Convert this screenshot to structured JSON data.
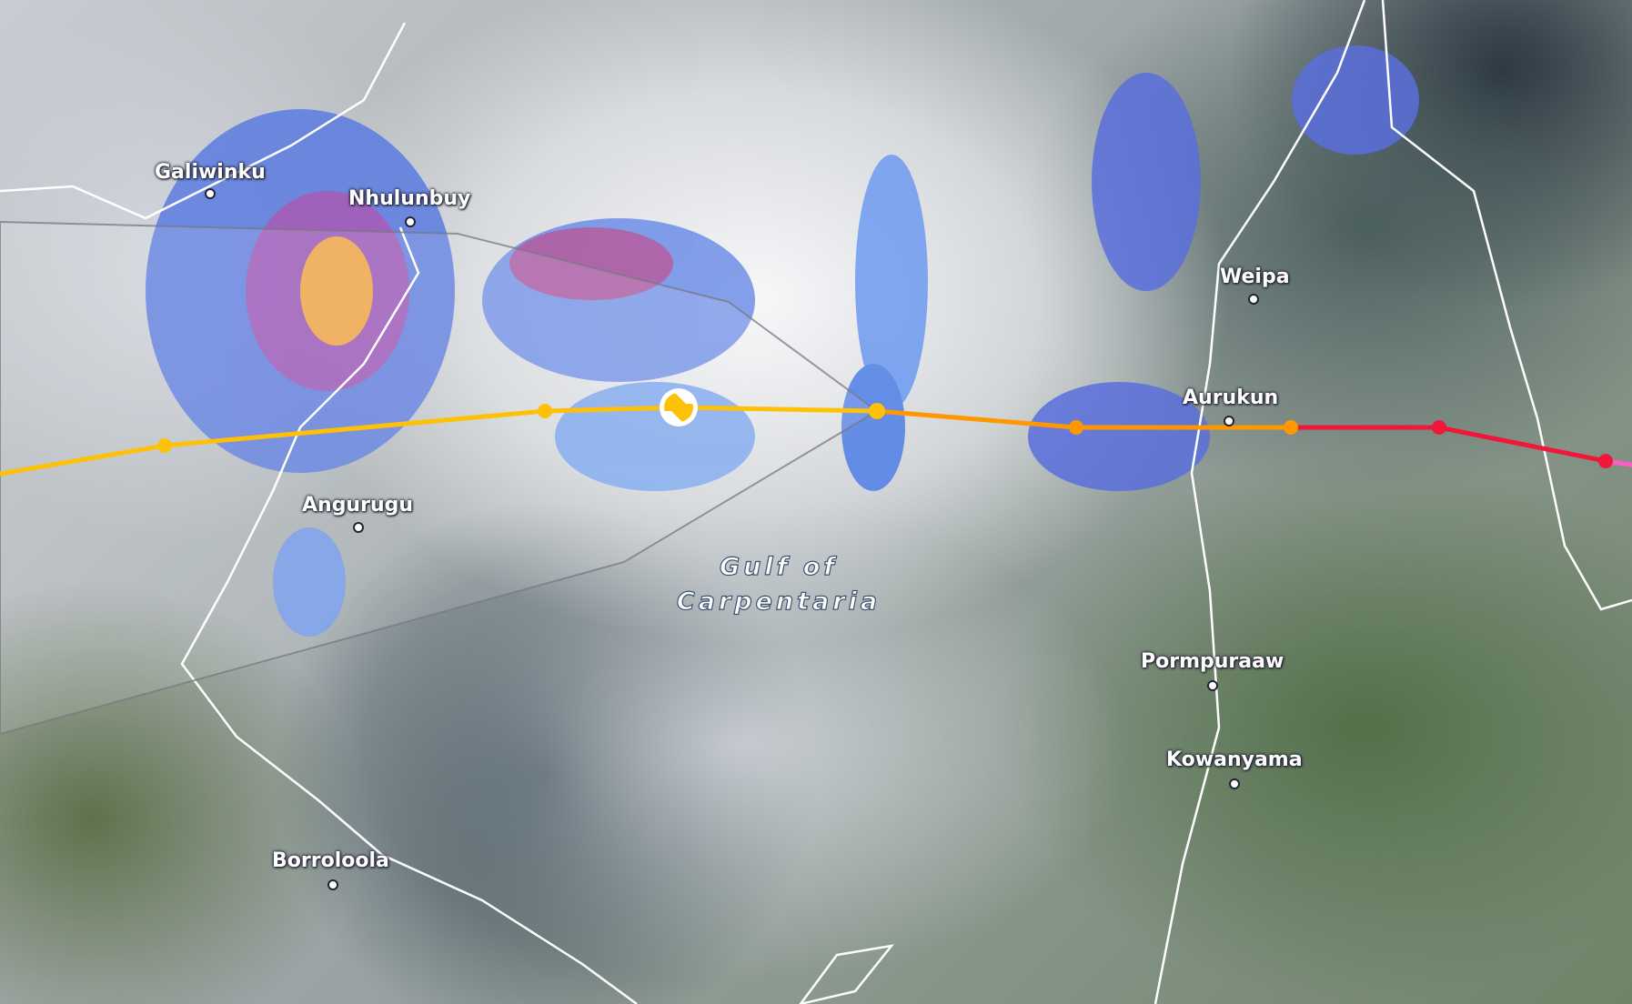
{
  "map": {
    "water_label": [
      "Gulf of",
      "Carpentaria"
    ],
    "places": [
      {
        "name": "Galiwinku"
      },
      {
        "name": "Nhulunbuy"
      },
      {
        "name": "Angurugu"
      },
      {
        "name": "Weipa"
      },
      {
        "name": "Aurukun"
      },
      {
        "name": "Pormpuraaw"
      },
      {
        "name": "Kowanyama"
      },
      {
        "name": "Borroloola"
      }
    ],
    "storm_icon": "cyclone-icon",
    "track_colors": {
      "weak": "#ffc107",
      "moderate": "#ff9800",
      "strong": "#f0173a",
      "extreme": "#ff5cc8"
    }
  }
}
